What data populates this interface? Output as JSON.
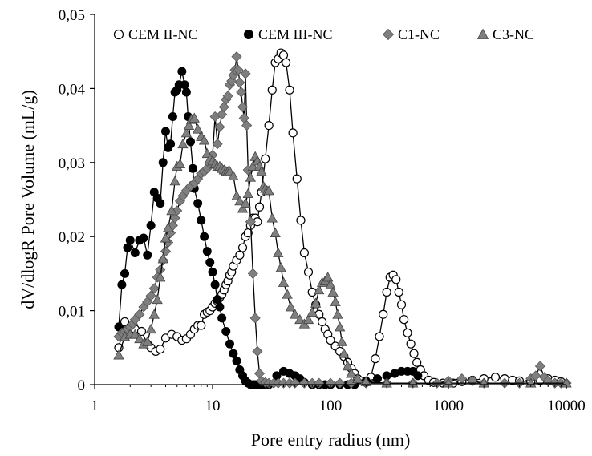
{
  "chart_data": {
    "type": "scatter",
    "title": "",
    "xlabel": "Pore entry radius (nm)",
    "ylabel": "dV/dlogR Pore Volume (mL/g)",
    "xscale": "log",
    "xlim": [
      1,
      10000
    ],
    "ylim": [
      0,
      0.05
    ],
    "x_ticks": [
      1,
      10,
      100,
      1000,
      10000
    ],
    "x_tick_labels": [
      "1",
      "10",
      "100",
      "1000",
      "10000"
    ],
    "y_ticks": [
      0,
      0.01,
      0.02,
      0.03,
      0.04,
      0.05
    ],
    "y_tick_labels": [
      "0",
      "0,01",
      "0,02",
      "0,03",
      "0,04",
      "0,05"
    ],
    "grid": false,
    "legend_position": "top",
    "series": [
      {
        "name": "CEM II-NC",
        "marker": "open-circle",
        "color": "#000000",
        "x": [
          1.6,
          1.8,
          2.0,
          2.2,
          2.5,
          2.8,
          3.0,
          3.3,
          3.6,
          4.0,
          4.5,
          5.0,
          5.5,
          6.0,
          6.5,
          7.0,
          7.5,
          8.0,
          8.5,
          9.0,
          9.5,
          10.0,
          10.5,
          11.0,
          11.5,
          12.0,
          12.5,
          13.0,
          13.5,
          14.0,
          14.5,
          15.0,
          16.0,
          17.0,
          18.0,
          19.0,
          20.0,
          21.0,
          22.0,
          23.0,
          24.0,
          25.0,
          26.0,
          28.0,
          30.0,
          32.0,
          34.0,
          36.0,
          38.0,
          40.0,
          42.0,
          45.0,
          48.0,
          52.0,
          56.0,
          60.0,
          65.0,
          70.0,
          75.0,
          80.0,
          85.0,
          90.0,
          95.0,
          100.0,
          110.0,
          120.0,
          130.0,
          140.0,
          150.0,
          160.0,
          170.0,
          180.0,
          200.0,
          220.0,
          240.0,
          260.0,
          280.0,
          300.0,
          320.0,
          340.0,
          360.0,
          380.0,
          400.0,
          420.0,
          450.0,
          480.0,
          510.0,
          540.0,
          580.0,
          620.0,
          680.0,
          750.0,
          900.0,
          1100.0,
          1300.0,
          1600.0,
          2000.0,
          2500.0,
          3000.0,
          3500.0,
          4000.0,
          5000.0,
          6000.0,
          7000.0,
          8000.0,
          9000.0
        ],
        "y": [
          0.005,
          0.0085,
          0.0078,
          0.0075,
          0.0072,
          0.0055,
          0.005,
          0.0045,
          0.0048,
          0.0063,
          0.0068,
          0.0065,
          0.006,
          0.0062,
          0.0068,
          0.0075,
          0.008,
          0.008,
          0.0095,
          0.0098,
          0.01,
          0.0105,
          0.011,
          0.0113,
          0.0118,
          0.0122,
          0.0128,
          0.0135,
          0.014,
          0.0148,
          0.0152,
          0.016,
          0.0168,
          0.0175,
          0.0185,
          0.02,
          0.0205,
          0.0215,
          0.0225,
          0.0225,
          0.022,
          0.024,
          0.026,
          0.0305,
          0.035,
          0.0398,
          0.0435,
          0.044,
          0.0448,
          0.0445,
          0.0435,
          0.0398,
          0.034,
          0.0278,
          0.0222,
          0.0178,
          0.0152,
          0.0125,
          0.0108,
          0.0095,
          0.0085,
          0.0075,
          0.0068,
          0.006,
          0.0052,
          0.0045,
          0.0038,
          0.003,
          0.0022,
          0.0015,
          0.0008,
          0.0005,
          0.0003,
          0.001,
          0.0035,
          0.0065,
          0.0095,
          0.0125,
          0.0145,
          0.0148,
          0.0142,
          0.0125,
          0.0108,
          0.0088,
          0.007,
          0.0055,
          0.0042,
          0.003,
          0.002,
          0.0012,
          0.0006,
          0.0003,
          0.0002,
          0.0002,
          0.0004,
          0.0006,
          0.0008,
          0.001,
          0.0008,
          0.0006,
          0.0005,
          0.0004,
          0.0006,
          0.0008,
          0.0006,
          0.0004
        ]
      },
      {
        "name": "CEM III-NC",
        "marker": "filled-circle",
        "color": "#000000",
        "x": [
          1.6,
          1.7,
          1.8,
          1.9,
          2.0,
          2.2,
          2.4,
          2.6,
          2.8,
          3.0,
          3.2,
          3.4,
          3.6,
          3.8,
          4.0,
          4.2,
          4.4,
          4.6,
          4.8,
          5.0,
          5.2,
          5.5,
          5.8,
          6.0,
          6.2,
          6.5,
          6.8,
          7.0,
          7.5,
          8.0,
          8.5,
          9.0,
          9.5,
          10.0,
          10.5,
          11.0,
          11.5,
          12.0,
          13.0,
          14.0,
          15.0,
          16.0,
          17.0,
          18.0,
          19.0,
          20.0,
          21.0,
          22.0,
          23.0,
          24.0,
          25.0,
          27.0,
          30.0,
          35.0,
          40.0,
          45.0,
          50.0,
          55.0,
          60.0,
          70.0,
          80.0,
          90.0,
          100.0,
          120.0,
          140.0,
          160.0,
          200.0,
          250.0,
          300.0,
          350.0,
          400.0,
          450.0,
          500.0,
          550.0
        ],
        "y": [
          0.0078,
          0.0135,
          0.015,
          0.0185,
          0.0195,
          0.0178,
          0.0195,
          0.0198,
          0.0175,
          0.0215,
          0.026,
          0.0252,
          0.0245,
          0.03,
          0.0342,
          0.032,
          0.0325,
          0.0362,
          0.0395,
          0.0398,
          0.0405,
          0.0423,
          0.0405,
          0.0395,
          0.0362,
          0.0328,
          0.0292,
          0.0265,
          0.0245,
          0.0222,
          0.02,
          0.018,
          0.0165,
          0.0152,
          0.0135,
          0.0115,
          0.0105,
          0.009,
          0.0072,
          0.0055,
          0.0042,
          0.0032,
          0.002,
          0.0012,
          0.0005,
          0.0002,
          0.0,
          0.0,
          0.0,
          0.0,
          0.0,
          0.0,
          0.0,
          0.0012,
          0.0018,
          0.0015,
          0.0012,
          0.0008,
          0.0003,
          0.0,
          0.0,
          0.0,
          0.0,
          0.0,
          0.0,
          0.0,
          0.0005,
          0.0008,
          0.0012,
          0.0015,
          0.0018,
          0.0018,
          0.0018,
          0.0012
        ]
      },
      {
        "name": "C1-NC",
        "marker": "diamond",
        "color": "#7f7f7f",
        "x": [
          1.6,
          1.7,
          1.8,
          1.9,
          2.0,
          2.1,
          2.2,
          2.4,
          2.6,
          2.8,
          3.0,
          3.2,
          3.4,
          3.6,
          3.8,
          4.0,
          4.2,
          4.4,
          4.6,
          4.8,
          5.0,
          5.3,
          5.6,
          6.0,
          6.5,
          7.0,
          7.5,
          8.0,
          8.5,
          9.0,
          9.5,
          10.0,
          10.5,
          11.0,
          11.5,
          12.0,
          12.5,
          13.0,
          13.5,
          14.0,
          14.5,
          15.0,
          15.5,
          16.0,
          16.5,
          17.0,
          17.5,
          18.0,
          18.5,
          19.0,
          19.5,
          20.0,
          21.0,
          22.0,
          23.0,
          24.0,
          25.0,
          26.0,
          28.0,
          30.0,
          33.0,
          36.0,
          40.0,
          45.0,
          50.0,
          60.0,
          70.0,
          80.0,
          100.0,
          120.0,
          150.0,
          200.0,
          300.0,
          500.0,
          800.0,
          1000.0,
          1300.0,
          1600.0,
          2000.0,
          3000.0,
          4000.0,
          5000.0,
          5500.0,
          6000.0,
          6500.0,
          7000.0,
          8000.0,
          9000.0,
          10000.0
        ],
        "y": [
          0.0065,
          0.007,
          0.0072,
          0.0075,
          0.0078,
          0.0082,
          0.0088,
          0.0095,
          0.0105,
          0.0112,
          0.012,
          0.013,
          0.0145,
          0.0155,
          0.0168,
          0.018,
          0.0192,
          0.0205,
          0.0215,
          0.0225,
          0.0235,
          0.0248,
          0.0255,
          0.0262,
          0.0268,
          0.0272,
          0.0278,
          0.0285,
          0.0288,
          0.0292,
          0.0298,
          0.031,
          0.0362,
          0.0325,
          0.0348,
          0.0365,
          0.0375,
          0.0385,
          0.039,
          0.0405,
          0.041,
          0.0418,
          0.0425,
          0.0443,
          0.0425,
          0.0408,
          0.0395,
          0.0375,
          0.036,
          0.042,
          0.035,
          0.029,
          0.022,
          0.015,
          0.009,
          0.0045,
          0.0015,
          0.0005,
          0.0003,
          0.0002,
          0.0002,
          0.0002,
          0.0002,
          0.0002,
          0.0002,
          0.0002,
          0.0002,
          0.0002,
          0.0002,
          0.0002,
          0.0002,
          0.0002,
          0.0002,
          0.0002,
          0.0002,
          0.0005,
          0.0008,
          0.0005,
          0.0002,
          0.0002,
          0.0002,
          0.0008,
          0.0012,
          0.0025,
          0.001,
          0.0005,
          0.0002,
          0.0002,
          0.0002
        ]
      },
      {
        "name": "C3-NC",
        "marker": "triangle",
        "color": "#7f7f7f",
        "x": [
          1.6,
          1.8,
          2.0,
          2.2,
          2.4,
          2.6,
          2.8,
          3.0,
          3.2,
          3.4,
          3.6,
          3.8,
          4.0,
          4.2,
          4.5,
          4.8,
          5.0,
          5.3,
          5.6,
          6.0,
          6.3,
          6.6,
          7.0,
          7.5,
          8.0,
          8.5,
          9.0,
          9.5,
          10.0,
          10.5,
          11.0,
          11.5,
          12.0,
          12.5,
          13.0,
          13.5,
          14.0,
          15.0,
          16.0,
          17.0,
          18.0,
          19.0,
          20.0,
          21.0,
          22.0,
          23.0,
          24.0,
          25.0,
          26.0,
          27.0,
          28.0,
          29.0,
          30.0,
          32.0,
          34.0,
          36.0,
          38.0,
          40.0,
          43.0,
          46.0,
          50.0,
          55.0,
          60.0,
          65.0,
          70.0,
          75.0,
          80.0,
          85.0,
          90.0,
          95.0,
          100.0,
          105.0,
          110.0,
          115.0,
          120.0,
          125.0,
          130.0,
          140.0,
          150.0,
          170.0,
          200.0,
          300.0,
          500.0,
          1000.0,
          2000.0,
          5000.0,
          10000.0
        ],
        "y": [
          0.004,
          0.0065,
          0.0068,
          0.0068,
          0.0062,
          0.0055,
          0.0058,
          0.0075,
          0.0095,
          0.0115,
          0.0145,
          0.017,
          0.0198,
          0.0212,
          0.0235,
          0.0275,
          0.0295,
          0.0298,
          0.0325,
          0.034,
          0.035,
          0.0358,
          0.036,
          0.0345,
          0.0335,
          0.033,
          0.0312,
          0.0305,
          0.0302,
          0.0298,
          0.0295,
          0.0295,
          0.0292,
          0.029,
          0.0288,
          0.0288,
          0.0288,
          0.0282,
          0.0255,
          0.0248,
          0.0238,
          0.0245,
          0.0258,
          0.028,
          0.0295,
          0.0308,
          0.0302,
          0.0295,
          0.0288,
          0.0268,
          0.0265,
          0.0262,
          0.0262,
          0.0225,
          0.0205,
          0.0178,
          0.0158,
          0.0138,
          0.0122,
          0.0105,
          0.0095,
          0.0088,
          0.0082,
          0.0088,
          0.0098,
          0.011,
          0.0128,
          0.0138,
          0.014,
          0.0145,
          0.0135,
          0.0125,
          0.0112,
          0.0095,
          0.0078,
          0.0058,
          0.0042,
          0.0025,
          0.0015,
          0.0008,
          0.0004,
          0.0002,
          0.0002,
          0.0002,
          0.0002,
          0.0002,
          0.0002
        ]
      }
    ]
  }
}
